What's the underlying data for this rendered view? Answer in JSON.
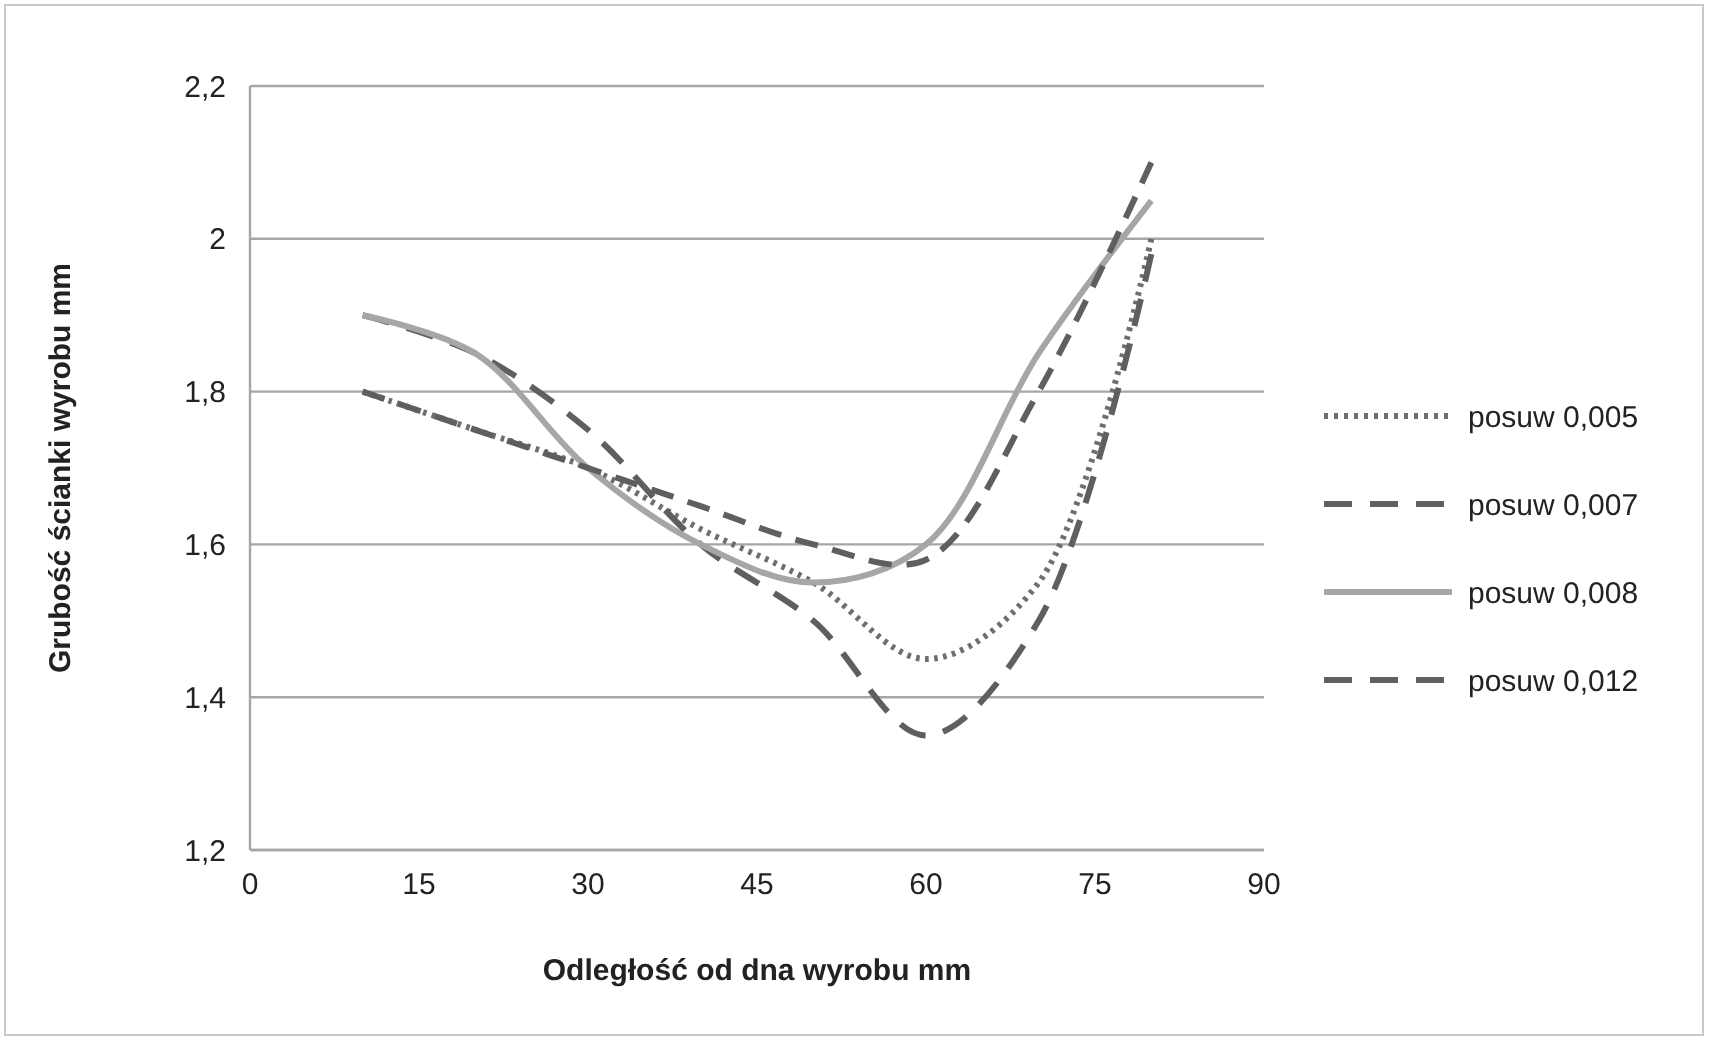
{
  "chart_data": {
    "type": "line",
    "xlabel": "Odległość od dna wyrobu mm",
    "ylabel": "Grubość ścianki wyrobu mm",
    "x": [
      10,
      20,
      30,
      40,
      50,
      60,
      70,
      80
    ],
    "xlim": [
      0,
      90
    ],
    "xticks": [
      0,
      15,
      30,
      45,
      60,
      75,
      90
    ],
    "ylim": [
      1.2,
      2.2
    ],
    "yticks": [
      {
        "value": 1.2,
        "label": "1,2"
      },
      {
        "value": 1.4,
        "label": "1,4"
      },
      {
        "value": 1.6,
        "label": "1,6"
      },
      {
        "value": 1.8,
        "label": "1,8"
      },
      {
        "value": 2,
        "label": "2"
      },
      {
        "value": 2.2,
        "label": "2,2"
      }
    ],
    "grid": "y",
    "legend": "right",
    "marker": "none",
    "series": [
      {
        "name": "posuw 0,005",
        "color": "#6e6e6e",
        "line_style": "dotted",
        "values": [
          1.8,
          1.75,
          1.7,
          1.62,
          1.55,
          1.45,
          1.55,
          2.0
        ]
      },
      {
        "name": "posuw 0,007",
        "color": "#5f5f5f",
        "line_style": "dashed",
        "values": [
          1.9,
          1.85,
          1.75,
          1.6,
          1.5,
          1.35,
          1.5,
          1.98
        ]
      },
      {
        "name": "posuw 0,008",
        "color": "#a6a6a6",
        "line_style": "solid",
        "values": [
          1.9,
          1.85,
          1.7,
          1.6,
          1.55,
          1.6,
          1.85,
          2.05
        ]
      },
      {
        "name": "posuw 0,012",
        "color": "#5f5f5f",
        "line_style": "dashed",
        "values": [
          1.8,
          1.75,
          1.7,
          1.65,
          1.6,
          1.58,
          1.8,
          2.1
        ]
      }
    ]
  }
}
